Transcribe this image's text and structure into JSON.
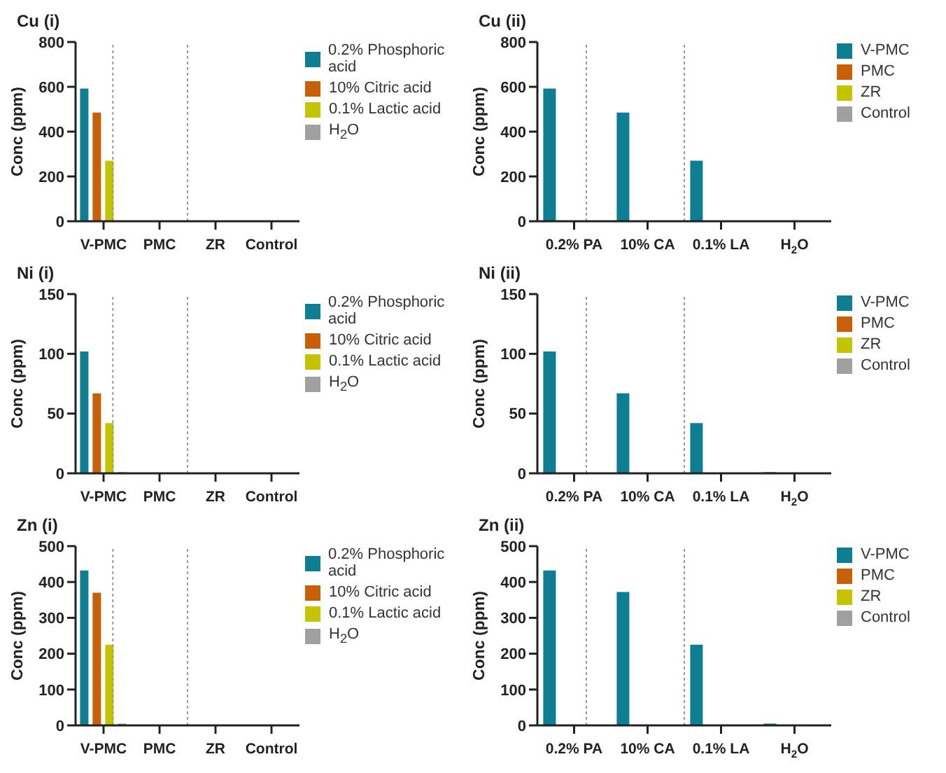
{
  "chart_data": [
    {
      "type": "bar",
      "title": "Cu (i)",
      "ylabel": "Conc (ppm)",
      "categories": [
        "V-PMC",
        "PMC",
        "ZR",
        "Control"
      ],
      "ylim": [
        0,
        800
      ],
      "yticks": [
        0,
        200,
        400,
        600,
        800
      ],
      "grid": false,
      "legend": "right",
      "series": [
        {
          "name": "0.2% Phosphoric acid",
          "color": "#0e7f93",
          "values": [
            592,
            0,
            0,
            0
          ]
        },
        {
          "name": "10% Citric acid",
          "color": "#c8600a",
          "values": [
            485,
            0,
            0,
            0
          ]
        },
        {
          "name": "0.1% Lactic acid",
          "color": "#c5c400",
          "values": [
            270,
            0,
            0,
            0
          ]
        },
        {
          "name": "H$_{2}$O",
          "color": "#a0a0a0",
          "values": [
            0,
            0,
            0,
            0
          ]
        }
      ]
    },
    {
      "type": "bar",
      "title": "Cu (ii)",
      "ylabel": "Conc (ppm)",
      "categories": [
        "0.2% PA",
        "10% CA",
        "0.1% LA",
        "H$_{2}$O"
      ],
      "ylim": [
        0,
        800
      ],
      "yticks": [
        0,
        200,
        400,
        600,
        800
      ],
      "grid": false,
      "legend": "right",
      "series": [
        {
          "name": "V-PMC",
          "color": "#0e7f93",
          "values": [
            592,
            485,
            270,
            0
          ]
        },
        {
          "name": "PMC",
          "color": "#c8600a",
          "values": [
            0,
            0,
            0,
            0
          ]
        },
        {
          "name": "ZR",
          "color": "#c5c400",
          "values": [
            0,
            0,
            0,
            0
          ]
        },
        {
          "name": "Control",
          "color": "#a0a0a0",
          "values": [
            0,
            0,
            0,
            0
          ]
        }
      ]
    },
    {
      "type": "bar",
      "title": "Ni (i)",
      "ylabel": "Conc (ppm)",
      "categories": [
        "V-PMC",
        "PMC",
        "ZR",
        "Control"
      ],
      "ylim": [
        0,
        150
      ],
      "yticks": [
        0,
        50,
        100,
        150
      ],
      "grid": false,
      "legend": "right",
      "series": [
        {
          "name": "0.2% Phosphoric acid",
          "color": "#0e7f93",
          "values": [
            102,
            0,
            0,
            0
          ]
        },
        {
          "name": "10% Citric acid",
          "color": "#c8600a",
          "values": [
            67,
            0,
            0,
            0
          ]
        },
        {
          "name": "0.1% Lactic acid",
          "color": "#c5c400",
          "values": [
            42,
            0,
            0,
            0
          ]
        },
        {
          "name": "H$_{2}$O",
          "color": "#a0a0a0",
          "values": [
            1,
            0,
            0,
            0
          ]
        }
      ]
    },
    {
      "type": "bar",
      "title": "Ni (ii)",
      "ylabel": "Conc (ppm)",
      "categories": [
        "0.2% PA",
        "10% CA",
        "0.1% LA",
        "H$_{2}$O"
      ],
      "ylim": [
        0,
        150
      ],
      "yticks": [
        0,
        50,
        100,
        150
      ],
      "grid": false,
      "legend": "right",
      "series": [
        {
          "name": "V-PMC",
          "color": "#0e7f93",
          "values": [
            102,
            67,
            42,
            1
          ]
        },
        {
          "name": "PMC",
          "color": "#c8600a",
          "values": [
            0,
            0,
            0,
            0
          ]
        },
        {
          "name": "ZR",
          "color": "#c5c400",
          "values": [
            0,
            0,
            0,
            0
          ]
        },
        {
          "name": "Control",
          "color": "#a0a0a0",
          "values": [
            0,
            0,
            0,
            0
          ]
        }
      ]
    },
    {
      "type": "bar",
      "title": "Zn (i)",
      "ylabel": "Conc (ppm)",
      "categories": [
        "V-PMC",
        "PMC",
        "ZR",
        "Control"
      ],
      "ylim": [
        0,
        500
      ],
      "yticks": [
        0,
        100,
        200,
        300,
        400,
        500
      ],
      "grid": false,
      "legend": "right",
      "series": [
        {
          "name": "0.2% Phosphoric acid",
          "color": "#0e7f93",
          "values": [
            432,
            0,
            0,
            0
          ]
        },
        {
          "name": "10% Citric acid",
          "color": "#c8600a",
          "values": [
            370,
            0,
            0,
            0
          ]
        },
        {
          "name": "0.1% Lactic acid",
          "color": "#c5c400",
          "values": [
            225,
            0,
            0,
            0
          ]
        },
        {
          "name": "H$_{2}$O",
          "color": "#a0a0a0",
          "values": [
            5,
            0,
            0,
            0
          ]
        }
      ]
    },
    {
      "type": "bar",
      "title": "Zn (ii)",
      "ylabel": "Conc (ppm)",
      "categories": [
        "0.2% PA",
        "10% CA",
        "0.1% LA",
        "H$_{2}$O"
      ],
      "ylim": [
        0,
        500
      ],
      "yticks": [
        0,
        100,
        200,
        300,
        400,
        500
      ],
      "grid": false,
      "legend": "right",
      "series": [
        {
          "name": "V-PMC",
          "color": "#0e7f93",
          "values": [
            432,
            372,
            225,
            5
          ]
        },
        {
          "name": "PMC",
          "color": "#c8600a",
          "values": [
            0,
            0,
            0,
            0
          ]
        },
        {
          "name": "ZR",
          "color": "#c5c400",
          "values": [
            0,
            0,
            0,
            0
          ]
        },
        {
          "name": "Control",
          "color": "#a0a0a0",
          "values": [
            0,
            0,
            0,
            0
          ]
        }
      ]
    }
  ]
}
